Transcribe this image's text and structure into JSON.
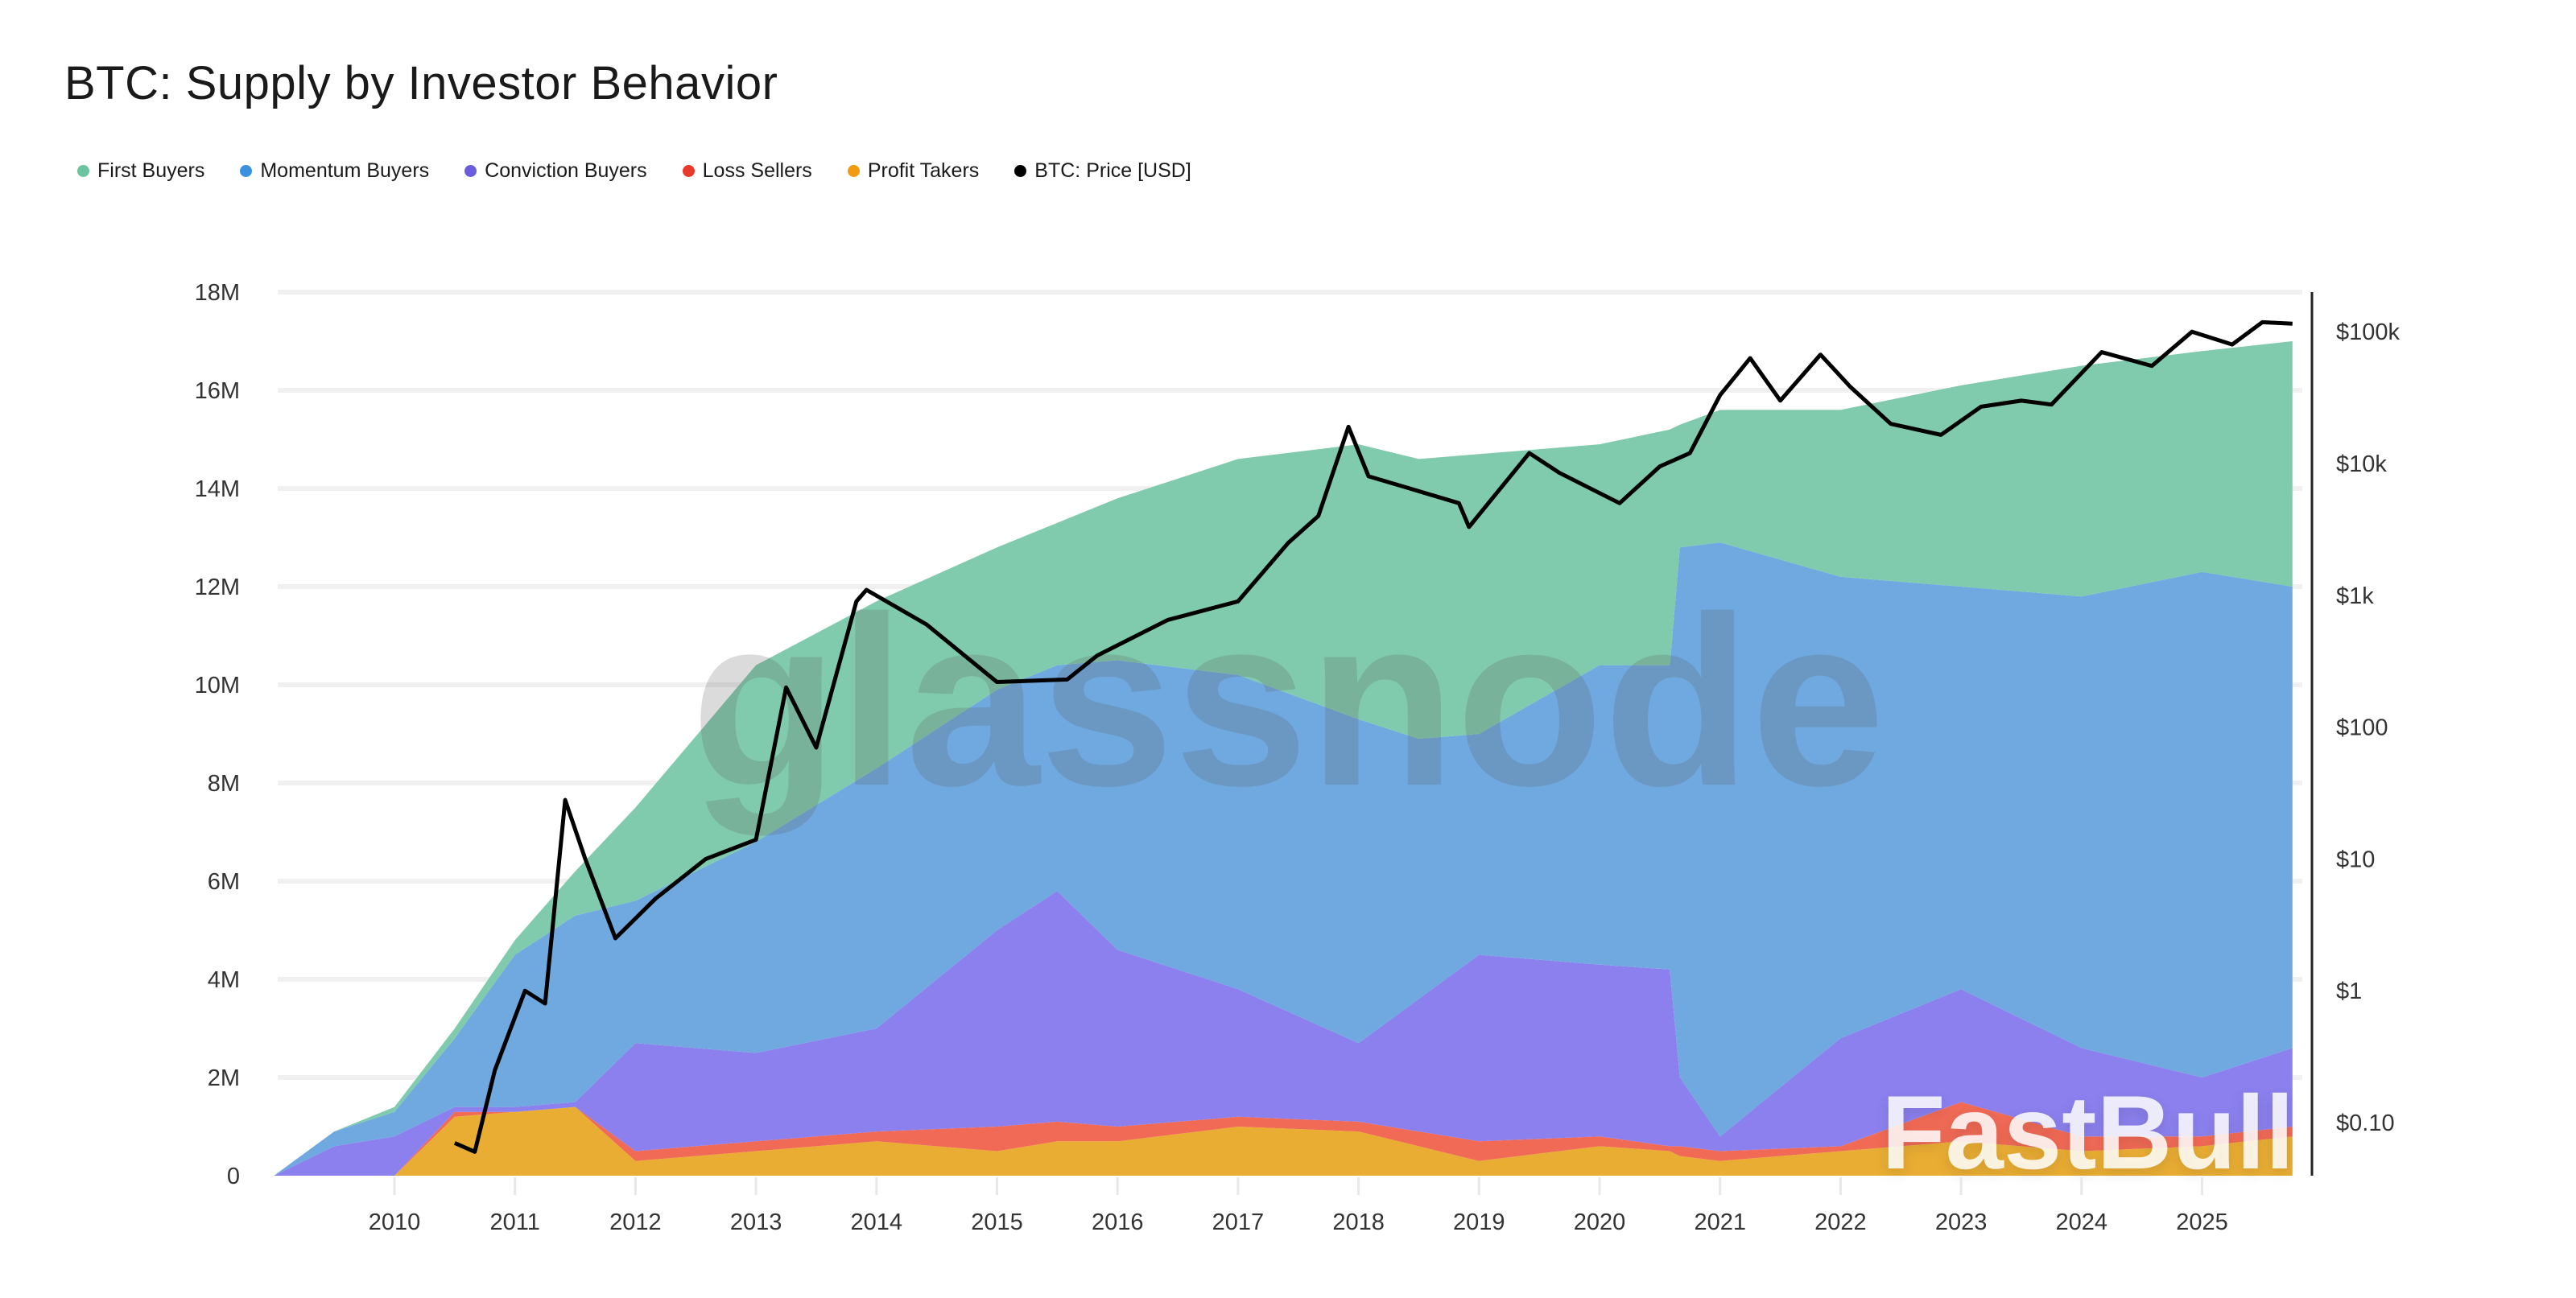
{
  "title": "BTC: Supply by Investor Behavior",
  "legend": [
    {
      "label": "First Buyers",
      "color": "#6cc3a0"
    },
    {
      "label": "Momentum Buyers",
      "color": "#3d8fe0"
    },
    {
      "label": "Conviction Buyers",
      "color": "#6b5ddb"
    },
    {
      "label": "Loss Sellers",
      "color": "#e8392a"
    },
    {
      "label": "Profit Takers",
      "color": "#f19a12"
    },
    {
      "label": "BTC: Price [USD]",
      "color": "#000000"
    }
  ],
  "watermarks": [
    "glassnode",
    "FastBull"
  ],
  "chart_data": {
    "type": "area",
    "stacked": true,
    "title": "BTC: Supply by Investor Behavior",
    "xlabel": "",
    "ylabel": "",
    "ylim": [
      0,
      18000000
    ],
    "y_ticks": [
      "0",
      "2M",
      "4M",
      "6M",
      "8M",
      "10M",
      "12M",
      "14M",
      "16M",
      "18M"
    ],
    "y_tick_values": [
      0,
      2,
      4,
      6,
      8,
      10,
      12,
      14,
      16,
      18
    ],
    "x_ticks": [
      "2010",
      "2011",
      "2012",
      "2013",
      "2014",
      "2015",
      "2016",
      "2017",
      "2018",
      "2019",
      "2020",
      "2021",
      "2022",
      "2023",
      "2024",
      "2025"
    ],
    "xlim": [
      "2009-01",
      "2025-10"
    ],
    "grid": true,
    "legend_position": "top-left",
    "units": "millions BTC",
    "x": [
      "2009-01",
      "2009-07",
      "2010-01",
      "2010-07",
      "2011-01",
      "2011-07",
      "2012-01",
      "2013-01",
      "2014-01",
      "2015-01",
      "2015-07",
      "2016-01",
      "2017-01",
      "2018-01",
      "2018-07",
      "2019-01",
      "2020-01",
      "2020-08",
      "2020-09",
      "2021-01",
      "2022-01",
      "2023-01",
      "2024-01",
      "2025-01",
      "2025-10"
    ],
    "series": [
      {
        "name": "Profit Takers",
        "color": "#e9ad33",
        "values": [
          0,
          0,
          0,
          1.2,
          1.3,
          1.4,
          0.3,
          0.5,
          0.7,
          0.5,
          0.7,
          0.7,
          1.0,
          0.9,
          0.6,
          0.3,
          0.6,
          0.5,
          0.4,
          0.3,
          0.5,
          0.7,
          0.5,
          0.6,
          0.8
        ]
      },
      {
        "name": "Loss Sellers",
        "color": "#f06a55",
        "values": [
          0,
          0,
          0,
          0.1,
          0,
          0,
          0.2,
          0.2,
          0.2,
          0.5,
          0.4,
          0.3,
          0.2,
          0.2,
          0.3,
          0.4,
          0.2,
          0.1,
          0.2,
          0.2,
          0.1,
          0.8,
          0.3,
          0.2,
          0.2
        ]
      },
      {
        "name": "Conviction Buyers",
        "color": "#8b80ee",
        "values": [
          0,
          0.6,
          0.8,
          0.1,
          0.1,
          0.1,
          2.2,
          1.8,
          2.1,
          4.0,
          4.7,
          3.6,
          2.6,
          1.6,
          2.7,
          3.8,
          3.5,
          3.6,
          1.4,
          0.3,
          2.2,
          2.3,
          1.8,
          1.2,
          1.6
        ]
      },
      {
        "name": "Momentum Buyers",
        "color": "#6fa9e0",
        "values": [
          0,
          0.3,
          0.5,
          1.4,
          3.1,
          3.8,
          2.9,
          4.3,
          5.3,
          4.9,
          4.6,
          5.9,
          6.4,
          6.6,
          5.3,
          4.5,
          6.1,
          6.2,
          10.8,
          12.1,
          9.4,
          8.2,
          9.2,
          10.3,
          9.4
        ]
      },
      {
        "name": "First Buyers",
        "color": "#80cbad",
        "values": [
          0,
          0,
          0.1,
          0.2,
          0.3,
          0.9,
          1.9,
          3.6,
          3.4,
          2.9,
          2.9,
          3.3,
          4.4,
          5.6,
          5.7,
          5.7,
          4.5,
          4.8,
          2.5,
          2.7,
          3.4,
          4.1,
          4.7,
          4.5,
          5.0
        ]
      }
    ],
    "price_axis": {
      "scale": "log",
      "ticks": [
        "$0.10",
        "$1",
        "$10",
        "$100",
        "$1k",
        "$10k",
        "$100k"
      ],
      "tick_values": [
        0.1,
        1,
        10,
        100,
        1000,
        10000,
        100000
      ]
    },
    "price_series": {
      "name": "BTC: Price [USD]",
      "color": "#000000",
      "x": [
        "2010-07",
        "2010-09",
        "2010-11",
        "2011-02",
        "2011-04",
        "2011-06",
        "2011-08",
        "2011-11",
        "2012-03",
        "2012-08",
        "2013-01",
        "2013-04",
        "2013-07",
        "2013-11",
        "2013-12",
        "2014-06",
        "2015-01",
        "2015-08",
        "2015-11",
        "2016-06",
        "2017-01",
        "2017-06",
        "2017-09",
        "2017-12",
        "2018-02",
        "2018-06",
        "2018-11",
        "2018-12",
        "2019-06",
        "2019-09",
        "2020-03",
        "2020-07",
        "2020-10",
        "2021-01",
        "2021-04",
        "2021-07",
        "2021-11",
        "2022-02",
        "2022-06",
        "2022-11",
        "2023-03",
        "2023-07",
        "2023-10",
        "2024-03",
        "2024-08",
        "2024-12",
        "2025-04",
        "2025-07",
        "2025-10"
      ],
      "values": [
        0.07,
        0.06,
        0.25,
        1,
        0.8,
        28,
        10,
        2.5,
        5,
        10,
        14,
        200,
        70,
        900,
        1100,
        600,
        220,
        230,
        350,
        650,
        900,
        2500,
        4000,
        19000,
        8000,
        6500,
        5000,
        3300,
        12000,
        8500,
        5000,
        9500,
        12000,
        33000,
        63000,
        30000,
        67000,
        38000,
        20000,
        16500,
        27000,
        30000,
        28000,
        70000,
        55000,
        100000,
        80000,
        118000,
        115000
      ]
    }
  }
}
